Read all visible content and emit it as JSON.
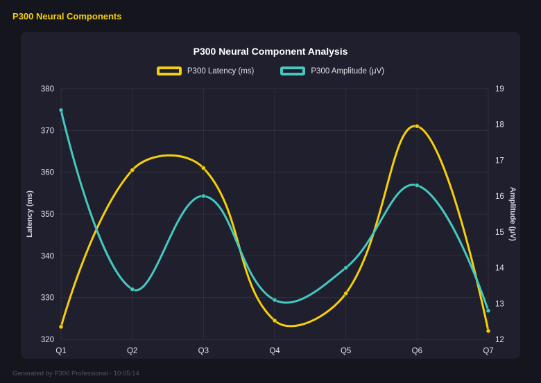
{
  "page": {
    "header_title": "P300 Neural Components",
    "footer": "Generated by P300 Professional - 10:05:14"
  },
  "chart_data": {
    "type": "line",
    "title": "P300 Neural Component Analysis",
    "categories": [
      "Q1",
      "Q2",
      "Q3",
      "Q4",
      "Q5",
      "Q6",
      "Q7"
    ],
    "series": [
      {
        "name": "P300 Latency (ms)",
        "axis": "left",
        "color": "#f5cf0a",
        "values": [
          323,
          360.5,
          361,
          324.5,
          331,
          371,
          322
        ]
      },
      {
        "name": "P300 Amplitude (μV)",
        "axis": "right",
        "color": "#45c8bf",
        "values": [
          18.4,
          13.4,
          16,
          13.1,
          14,
          16.3,
          12.8
        ]
      }
    ],
    "y_left": {
      "label": "Latency (ms)",
      "min": 320,
      "max": 380,
      "ticks": [
        380,
        370,
        360,
        350,
        340,
        330,
        320
      ]
    },
    "y_right": {
      "label": "Amplitude (μV)",
      "min": 12,
      "max": 19,
      "ticks": [
        19,
        18,
        17,
        16,
        15,
        14,
        13,
        12
      ]
    },
    "grid": true,
    "legend_position": "top",
    "line_tension": 0.4
  },
  "colors": {
    "background": "#15151e",
    "panel": "#1f1f2d",
    "accent_yellow": "#f5cf0a",
    "accent_teal": "#45c8bf",
    "grid_line": "rgba(255,255,255,0.08)",
    "tick_text": "#e2e2e8",
    "title_text": "#ffffff",
    "axis_title_text": "#cfcfd8",
    "footer_text": "#54545f"
  }
}
